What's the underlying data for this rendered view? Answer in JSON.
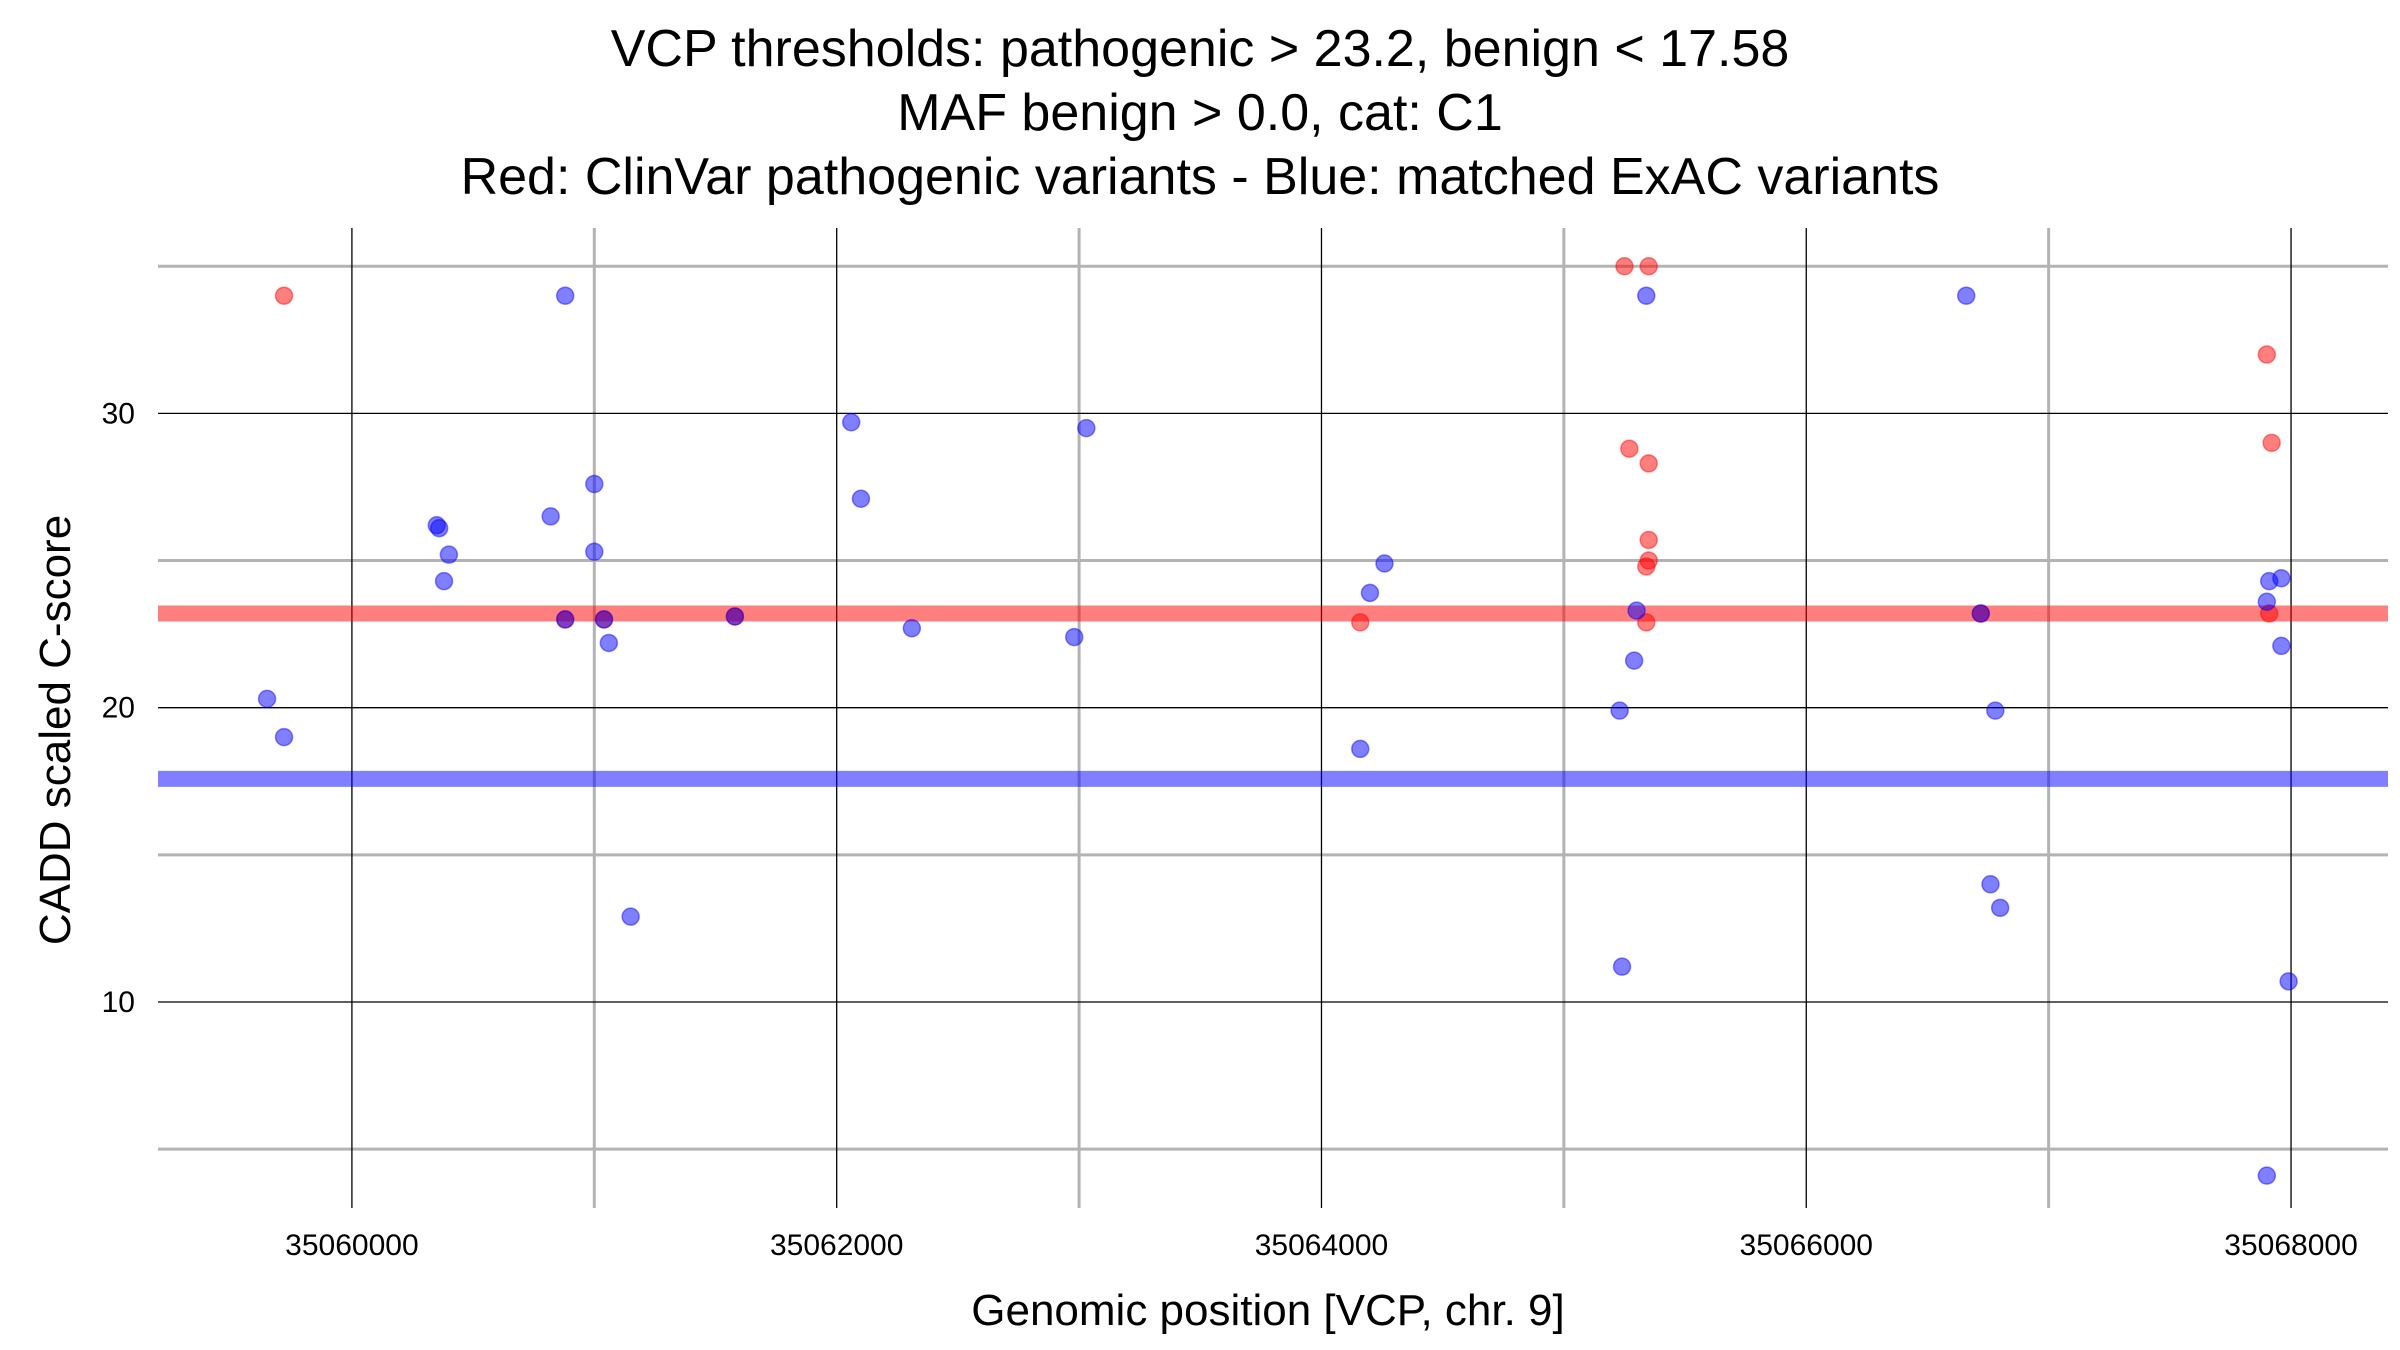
{
  "chart_data": {
    "type": "scatter",
    "title_lines": [
      "VCP thresholds: pathogenic > 23.2, benign < 17.58",
      "MAF benign > 0.0, cat: C1",
      "Red: ClinVar pathogenic variants - Blue: matched ExAC variants"
    ],
    "xlabel": "Genomic position [VCP, chr. 9]",
    "ylabel": "CADD scaled C-score",
    "xlim": [
      35059200,
      35068400
    ],
    "ylim": [
      3,
      36.3
    ],
    "x_ticks": [
      35060000,
      35062000,
      35064000,
      35066000,
      35068000
    ],
    "x_minor_ticks": [
      35061000,
      35063000,
      35065000,
      35067000
    ],
    "y_ticks": [
      10,
      20,
      30
    ],
    "y_minor_ticks": [
      5,
      15,
      25,
      35
    ],
    "grid": true,
    "colors": {
      "pathogenic": "#ff0000",
      "benign": "#0000ff"
    },
    "thresholds": [
      {
        "name": "pathogenic threshold",
        "value": 23.2,
        "color": "#ff0000"
      },
      {
        "name": "benign threshold",
        "value": 17.58,
        "color": "#0000ff"
      }
    ],
    "series": [
      {
        "name": "ClinVar pathogenic variants",
        "color": "#ff0000",
        "points": [
          [
            35059720,
            34.0
          ],
          [
            35065250,
            35.0
          ],
          [
            35065350,
            35.0
          ],
          [
            35067900,
            32.0
          ],
          [
            35067920,
            29.0
          ],
          [
            35065270,
            28.8
          ],
          [
            35065350,
            28.3
          ],
          [
            35065350,
            25.7
          ],
          [
            35065350,
            25.0
          ],
          [
            35065340,
            24.8
          ],
          [
            35061580,
            23.1
          ],
          [
            35064160,
            22.9
          ],
          [
            35065340,
            22.9
          ],
          [
            35066720,
            23.2
          ],
          [
            35067910,
            23.2
          ],
          [
            35060880,
            23.0
          ],
          [
            35061040,
            23.0
          ]
        ]
      },
      {
        "name": "matched ExAC variants",
        "color": "#0000ff",
        "points": [
          [
            35060880,
            34.0
          ],
          [
            35065340,
            34.0
          ],
          [
            35066660,
            34.0
          ],
          [
            35062060,
            29.7
          ],
          [
            35063030,
            29.5
          ],
          [
            35061000,
            27.6
          ],
          [
            35062100,
            27.1
          ],
          [
            35060820,
            26.5
          ],
          [
            35060350,
            26.2
          ],
          [
            35060360,
            26.1
          ],
          [
            35060400,
            25.2
          ],
          [
            35061000,
            25.3
          ],
          [
            35064260,
            24.9
          ],
          [
            35060380,
            24.3
          ],
          [
            35064200,
            23.9
          ],
          [
            35067910,
            24.3
          ],
          [
            35067960,
            24.4
          ],
          [
            35067900,
            23.6
          ],
          [
            35060880,
            23.0
          ],
          [
            35061040,
            23.0
          ],
          [
            35061580,
            23.1
          ],
          [
            35062310,
            22.7
          ],
          [
            35061060,
            22.2
          ],
          [
            35062980,
            22.4
          ],
          [
            35065300,
            23.3
          ],
          [
            35066720,
            23.2
          ],
          [
            35067960,
            22.1
          ],
          [
            35065290,
            21.6
          ],
          [
            35059650,
            20.3
          ],
          [
            35059720,
            19.0
          ],
          [
            35065230,
            19.9
          ],
          [
            35066780,
            19.9
          ],
          [
            35064160,
            18.6
          ],
          [
            35066760,
            14.0
          ],
          [
            35066800,
            13.2
          ],
          [
            35061150,
            12.9
          ],
          [
            35065240,
            11.2
          ],
          [
            35067990,
            10.7
          ],
          [
            35067900,
            4.1
          ]
        ]
      }
    ]
  }
}
